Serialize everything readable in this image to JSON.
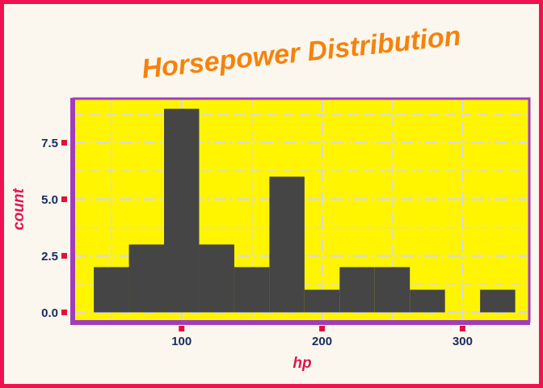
{
  "chart_data": {
    "type": "bar",
    "title": "Horsepower Distribution",
    "xlabel": "hp",
    "ylabel": "count",
    "xlim": [
      22.5,
      347.5
    ],
    "ylim": [
      -0.45,
      9.45
    ],
    "x_ticks": [
      100,
      200,
      300
    ],
    "x_tick_labels": [
      "100",
      "200",
      "300"
    ],
    "y_ticks": [
      0,
      2.5,
      5,
      7.5
    ],
    "y_tick_labels": [
      "0.0",
      "2.5",
      "5.0",
      "7.5"
    ],
    "grid": true,
    "bins": [
      {
        "x0": 37.5,
        "x1": 62.5,
        "count": 2
      },
      {
        "x0": 62.5,
        "x1": 87.5,
        "count": 3
      },
      {
        "x0": 87.5,
        "x1": 112.5,
        "count": 9
      },
      {
        "x0": 112.5,
        "x1": 137.5,
        "count": 3
      },
      {
        "x0": 137.5,
        "x1": 162.5,
        "count": 2
      },
      {
        "x0": 162.5,
        "x1": 187.5,
        "count": 6
      },
      {
        "x0": 187.5,
        "x1": 212.5,
        "count": 1
      },
      {
        "x0": 212.5,
        "x1": 237.5,
        "count": 2
      },
      {
        "x0": 237.5,
        "x1": 262.5,
        "count": 2
      },
      {
        "x0": 262.5,
        "x1": 287.5,
        "count": 1
      },
      {
        "x0": 287.5,
        "x1": 312.5,
        "count": 0
      },
      {
        "x0": 312.5,
        "x1": 337.5,
        "count": 1
      }
    ],
    "colors": {
      "bar": "#454545",
      "panel": "#fff500",
      "panel_border": "#a23db9",
      "grid": "#d9d9d9",
      "tick_mark": "#e0123a",
      "title": "#f6820c",
      "axis_title": "#e0174f",
      "tick_label": "#1a2a5e"
    }
  }
}
